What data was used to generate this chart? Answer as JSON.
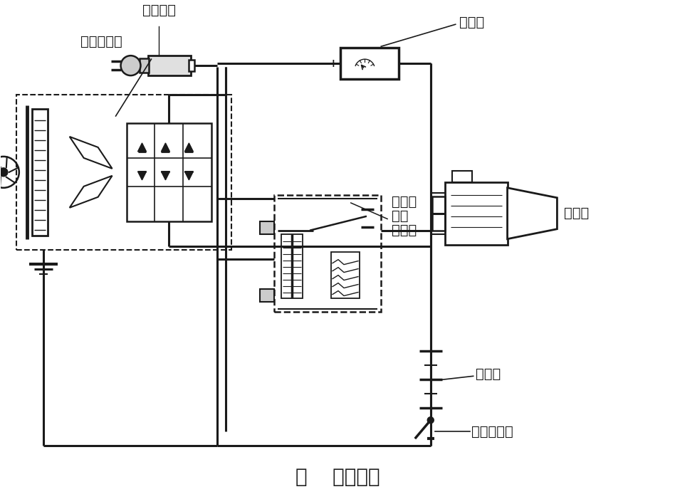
{
  "title": "图    电源电路",
  "labels": {
    "ammeter": "电流表",
    "ignition_switch": "点火开关",
    "vr1": "振动式",
    "vr2": "电压",
    "vr3": "调节器",
    "ac_generator": "交流发电机",
    "starter": "起动机",
    "battery": "蓄电池",
    "power_switch": "电源总开关",
    "plus": "+",
    "minus": "-"
  },
  "title_fontsize": 20,
  "label_fontsize": 14,
  "bg_color": "#ffffff",
  "line_color": "#1a1a1a",
  "lw_main": 2.2,
  "lw_thin": 1.5
}
